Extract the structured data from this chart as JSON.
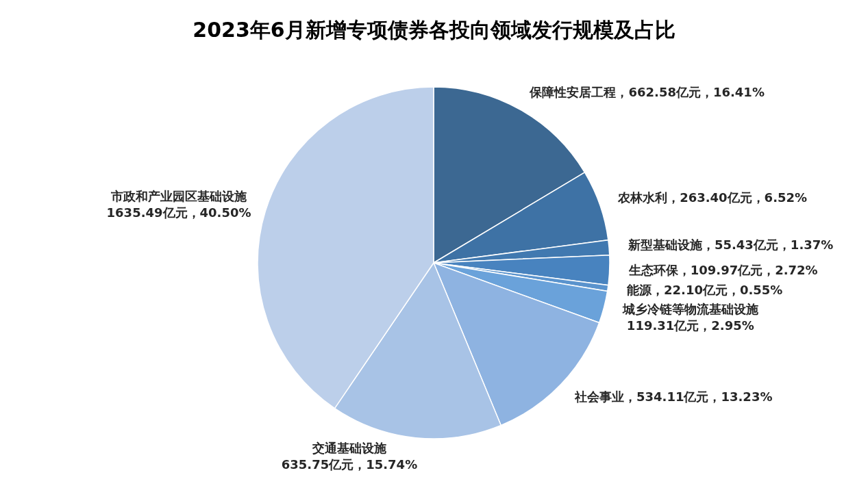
{
  "chart_data": {
    "type": "pie",
    "title": "2023年6月新增专项债券各投向领域发行规模及占比",
    "categories": [
      "保障性安居工程",
      "农林水利",
      "新型基础设施",
      "生态环保",
      "能源",
      "城乡冷链等物流基础设施",
      "社会事业",
      "交通基础设施",
      "市政和产业园区基础设施"
    ],
    "values": [
      662.58,
      263.4,
      55.43,
      109.97,
      22.1,
      119.31,
      534.11,
      635.75,
      1635.49
    ],
    "value_labels": [
      "，662.58亿元，16.41%",
      "，263.40亿元，6.52%",
      "，55.43亿元，1.37%",
      "，109.97亿元，2.72%",
      "，22.10亿元，0.55%",
      "\n119.31亿元，2.95%",
      "，534.11亿元，13.23%",
      "\n635.75亿元，15.74%",
      "\n1635.49亿元，40.50%"
    ],
    "colors": [
      "#3c6892",
      "#3e72a5",
      "#4179b0",
      "#4883bf",
      "#5a93cd",
      "#6aa2da",
      "#8eb3e1",
      "#a8c3e6",
      "#bccfea"
    ]
  }
}
